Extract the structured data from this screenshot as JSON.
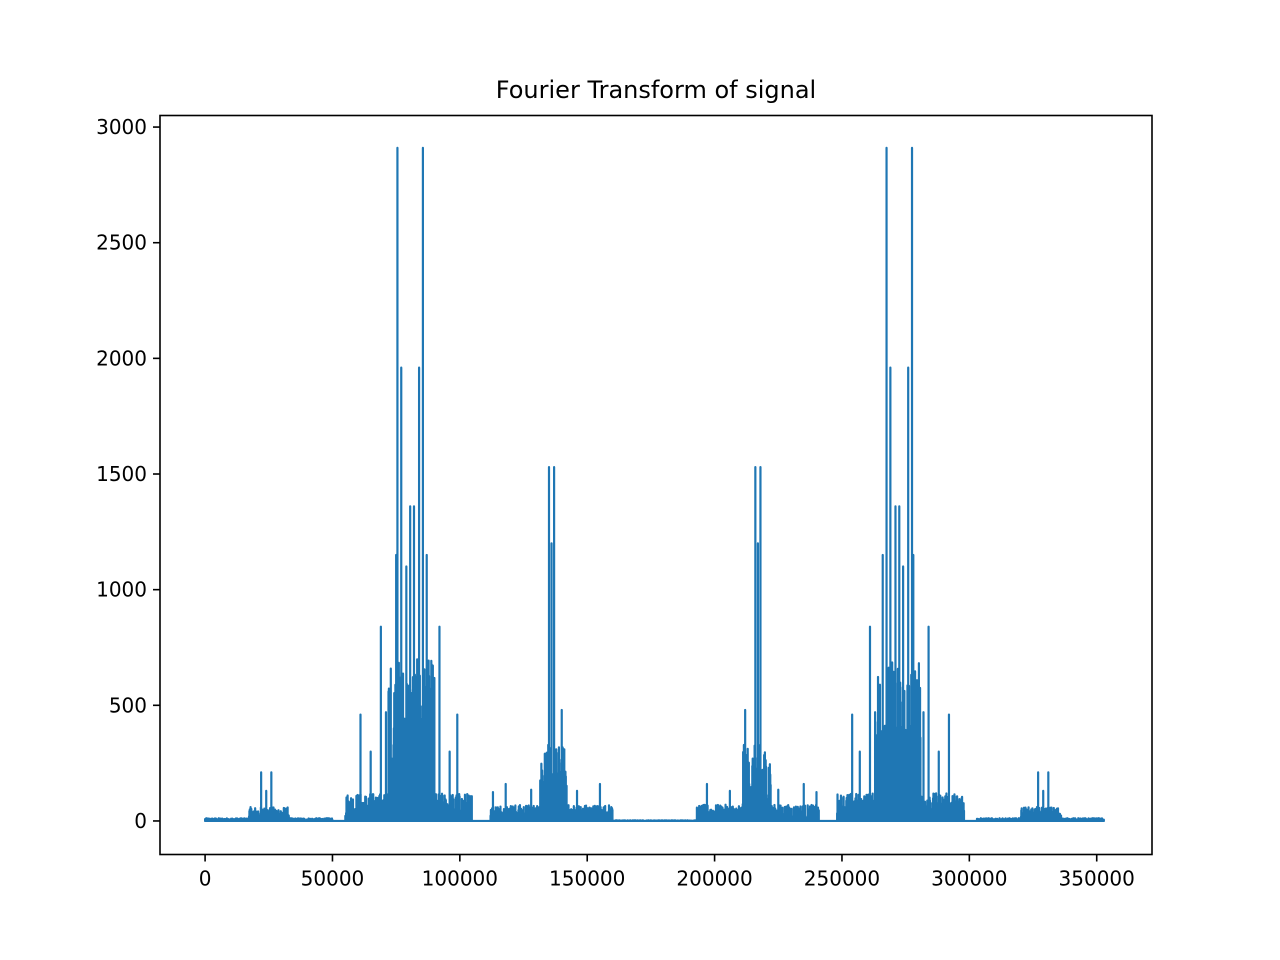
{
  "chart_data": {
    "type": "line",
    "title": "Fourier Transform of signal",
    "xlabel": "",
    "ylabel": "",
    "xlim": [
      -17700,
      371700
    ],
    "ylim": [
      -145,
      3050
    ],
    "x_ticks": [
      0,
      50000,
      100000,
      150000,
      200000,
      250000,
      300000,
      350000
    ],
    "x_tick_labels": [
      "0",
      "50000",
      "100000",
      "150000",
      "200000",
      "250000",
      "300000",
      "350000"
    ],
    "y_ticks": [
      0,
      500,
      1000,
      1500,
      2000,
      2500,
      3000
    ],
    "y_tick_labels": [
      "0",
      "500",
      "1000",
      "1500",
      "2000",
      "2500",
      "3000"
    ],
    "grid": false,
    "series": [
      {
        "color": "#1f77b4",
        "x_range": [
          0,
          352800
        ],
        "baseline": 0,
        "spectral_peaks": [
          {
            "x": 22000,
            "y": 210
          },
          {
            "x": 26000,
            "y": 210
          },
          {
            "x": 24000,
            "y": 130
          },
          {
            "x": 61000,
            "y": 460
          },
          {
            "x": 65000,
            "y": 300
          },
          {
            "x": 69000,
            "y": 840
          },
          {
            "x": 71000,
            "y": 470
          },
          {
            "x": 75000,
            "y": 1150
          },
          {
            "x": 75500,
            "y": 2910
          },
          {
            "x": 77000,
            "y": 1960
          },
          {
            "x": 79000,
            "y": 1100
          },
          {
            "x": 80500,
            "y": 1360
          },
          {
            "x": 82000,
            "y": 1360
          },
          {
            "x": 84000,
            "y": 1960
          },
          {
            "x": 85500,
            "y": 2910
          },
          {
            "x": 87000,
            "y": 1150
          },
          {
            "x": 92000,
            "y": 840
          },
          {
            "x": 90000,
            "y": 470
          },
          {
            "x": 96000,
            "y": 300
          },
          {
            "x": 99000,
            "y": 460
          },
          {
            "x": 113000,
            "y": 125
          },
          {
            "x": 118000,
            "y": 160
          },
          {
            "x": 128000,
            "y": 135
          },
          {
            "x": 135000,
            "y": 1530
          },
          {
            "x": 137000,
            "y": 1530
          },
          {
            "x": 136000,
            "y": 1200
          },
          {
            "x": 140000,
            "y": 480
          },
          {
            "x": 146000,
            "y": 130
          },
          {
            "x": 155000,
            "y": 160
          },
          {
            "x": 197000,
            "y": 160
          },
          {
            "x": 206000,
            "y": 130
          },
          {
            "x": 212000,
            "y": 480
          },
          {
            "x": 216000,
            "y": 1530
          },
          {
            "x": 218000,
            "y": 1530
          },
          {
            "x": 217000,
            "y": 1200
          },
          {
            "x": 225000,
            "y": 135
          },
          {
            "x": 235000,
            "y": 160
          },
          {
            "x": 240000,
            "y": 125
          },
          {
            "x": 254000,
            "y": 460
          },
          {
            "x": 257000,
            "y": 300
          },
          {
            "x": 261000,
            "y": 840
          },
          {
            "x": 263000,
            "y": 470
          },
          {
            "x": 266000,
            "y": 1150
          },
          {
            "x": 267500,
            "y": 2910
          },
          {
            "x": 269000,
            "y": 1960
          },
          {
            "x": 271000,
            "y": 1360
          },
          {
            "x": 272500,
            "y": 1360
          },
          {
            "x": 274000,
            "y": 1100
          },
          {
            "x": 276000,
            "y": 1960
          },
          {
            "x": 277500,
            "y": 2910
          },
          {
            "x": 278000,
            "y": 1150
          },
          {
            "x": 282000,
            "y": 470
          },
          {
            "x": 284000,
            "y": 840
          },
          {
            "x": 288000,
            "y": 300
          },
          {
            "x": 292000,
            "y": 460
          },
          {
            "x": 327000,
            "y": 210
          },
          {
            "x": 331000,
            "y": 210
          },
          {
            "x": 329000,
            "y": 130
          }
        ],
        "bands": [
          {
            "x_start": 0,
            "x_end": 50000,
            "level": 12
          },
          {
            "x_start": 17000,
            "x_end": 33000,
            "level": 60
          },
          {
            "x_start": 55000,
            "x_end": 105000,
            "level": 120
          },
          {
            "x_start": 72000,
            "x_end": 90000,
            "level": 700
          },
          {
            "x_start": 112000,
            "x_end": 160000,
            "level": 70
          },
          {
            "x_start": 131000,
            "x_end": 142000,
            "level": 330
          },
          {
            "x_start": 160000,
            "x_end": 193000,
            "level": 3
          },
          {
            "x_start": 193000,
            "x_end": 241000,
            "level": 70
          },
          {
            "x_start": 211000,
            "x_end": 222000,
            "level": 330
          },
          {
            "x_start": 248000,
            "x_end": 298000,
            "level": 120
          },
          {
            "x_start": 263000,
            "x_end": 281000,
            "level": 700
          },
          {
            "x_start": 303000,
            "x_end": 352800,
            "level": 12
          },
          {
            "x_start": 320000,
            "x_end": 336000,
            "level": 60
          }
        ]
      }
    ]
  }
}
